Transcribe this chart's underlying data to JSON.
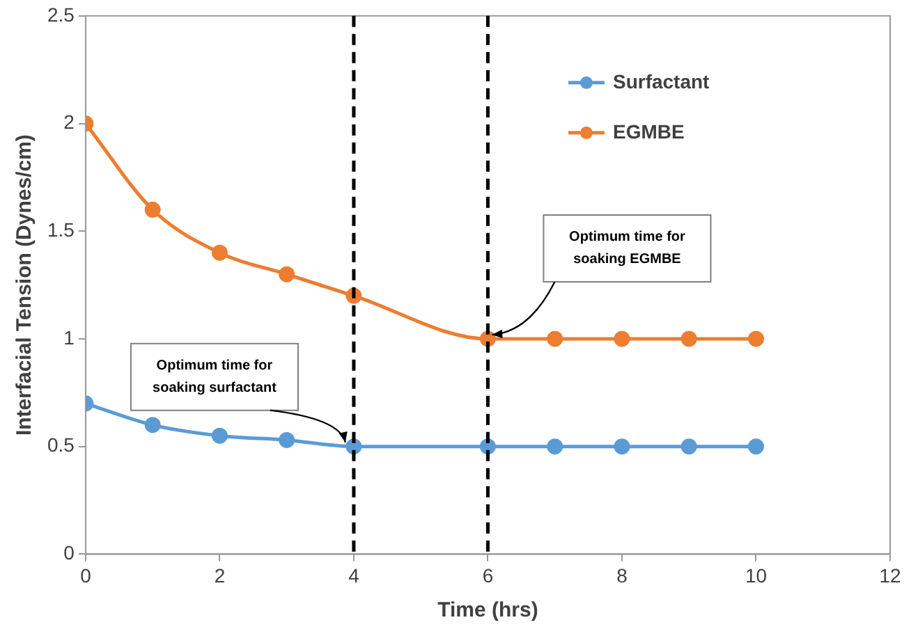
{
  "chart_data": {
    "type": "line",
    "xlabel": "Time (hrs)",
    "ylabel": "Interfacial Tension (Dynes/cm)",
    "series": [
      {
        "name": "Surfactant",
        "color": "#5b9bd5",
        "x": [
          0,
          1,
          2,
          3,
          4,
          6,
          7,
          8,
          9,
          10
        ],
        "values": [
          0.7,
          0.6,
          0.55,
          0.53,
          0.5,
          0.5,
          0.5,
          0.5,
          0.5,
          0.5
        ]
      },
      {
        "name": "EGMBE",
        "color": "#ed7d31",
        "x": [
          0,
          1,
          2,
          3,
          4,
          6,
          7,
          8,
          9,
          10
        ],
        "values": [
          2,
          1.6,
          1.4,
          1.3,
          1.2,
          1,
          1,
          1,
          1,
          1
        ]
      }
    ],
    "xlim": [
      0,
      12
    ],
    "xticks": [
      0,
      2,
      4,
      6,
      8,
      10,
      12
    ],
    "ylim": [
      0,
      2.5
    ],
    "yticks": [
      0,
      0.5,
      1,
      1.5,
      2,
      2.5
    ],
    "ref_lines": [
      {
        "axis": "x",
        "value": 4,
        "color": "#000000",
        "line_style": "dashed"
      },
      {
        "axis": "x",
        "value": 6,
        "color": "#000000",
        "line_style": "dashed"
      }
    ],
    "annotations": [
      {
        "text": "Optimum time for soaking surfactant",
        "x": 4,
        "y": 0.5
      },
      "Optimum time for soaking EGMBE"
    ],
    "legend": "top right",
    "marker": "circle",
    "line_style": "solid",
    "grid": false
  }
}
